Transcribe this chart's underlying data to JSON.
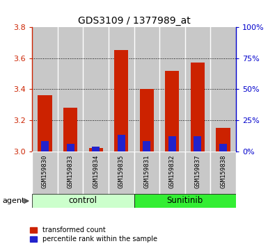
{
  "title": "GDS3109 / 1377989_at",
  "samples": [
    "GSM159830",
    "GSM159833",
    "GSM159834",
    "GSM159835",
    "GSM159831",
    "GSM159832",
    "GSM159837",
    "GSM159838"
  ],
  "transformed_count": [
    3.36,
    3.28,
    3.02,
    3.65,
    3.4,
    3.52,
    3.57,
    3.15
  ],
  "percentile_rank_pct": [
    8,
    6,
    4,
    13,
    8,
    12,
    12,
    6
  ],
  "ylim_left": [
    3.0,
    3.8
  ],
  "ylim_right": [
    0,
    100
  ],
  "yticks_left": [
    3.0,
    3.2,
    3.4,
    3.6,
    3.8
  ],
  "yticks_right": [
    0,
    25,
    50,
    75,
    100
  ],
  "bar_color_red": "#cc2200",
  "bar_color_blue": "#2222cc",
  "control_color_light": "#ccffcc",
  "sunitinib_color_bright": "#33ee33",
  "background_sample": "#c8c8c8",
  "left_axis_color": "#cc2200",
  "right_axis_color": "#0000cc",
  "legend_red": "transformed count",
  "legend_blue": "percentile rank within the sample",
  "agent_label": "agent",
  "control_label": "control",
  "sunitinib_label": "Sunitinib",
  "title_fontsize": 10,
  "tick_fontsize": 8,
  "legend_fontsize": 7,
  "bar_width": 0.55,
  "blue_bar_width": 0.3,
  "grid_yticks": [
    3.2,
    3.4,
    3.6
  ]
}
